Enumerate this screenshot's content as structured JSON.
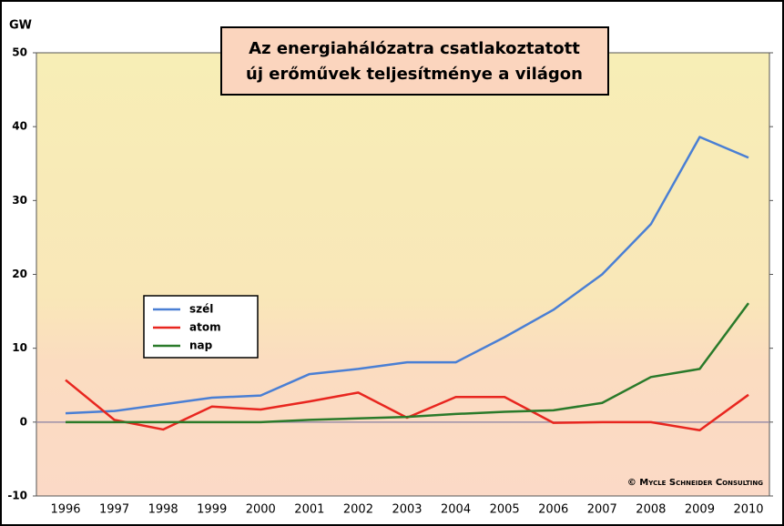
{
  "chart_data": {
    "type": "line",
    "title": [
      "Az energiahálózatra csatlakoztatott",
      "új erőművek teljesítménye a világon"
    ],
    "y_label": "GW",
    "annotation": "© Mycle Schneider Consulting",
    "categories": [
      "1996",
      "1997",
      "1998",
      "1999",
      "2000",
      "2001",
      "2002",
      "2003",
      "2004",
      "2005",
      "2006",
      "2007",
      "2008",
      "2009",
      "2010"
    ],
    "series": [
      {
        "name": "szél",
        "color": "#4a7fd4",
        "values": [
          1.2,
          1.5,
          2.4,
          3.3,
          3.6,
          6.5,
          7.2,
          8.1,
          8.1,
          11.5,
          15.2,
          20,
          26.8,
          38.6,
          35.8
        ]
      },
      {
        "name": "atom",
        "color": "#e8261f",
        "values": [
          5.7,
          0.3,
          -1,
          2.1,
          1.7,
          2.8,
          4,
          0.6,
          3.4,
          3.4,
          -0.1,
          0,
          0,
          -1.1,
          3.7
        ]
      },
      {
        "name": "nap",
        "color": "#2a7a2a",
        "values": [
          0,
          0,
          0,
          0,
          0,
          0.3,
          0.5,
          0.7,
          1.1,
          1.4,
          1.6,
          2.6,
          6.1,
          7.2,
          16.1
        ]
      }
    ],
    "ylim": [
      -10,
      50
    ],
    "yticks": [
      -10,
      0,
      10,
      20,
      30,
      40,
      50
    ],
    "legend": "center-left"
  }
}
